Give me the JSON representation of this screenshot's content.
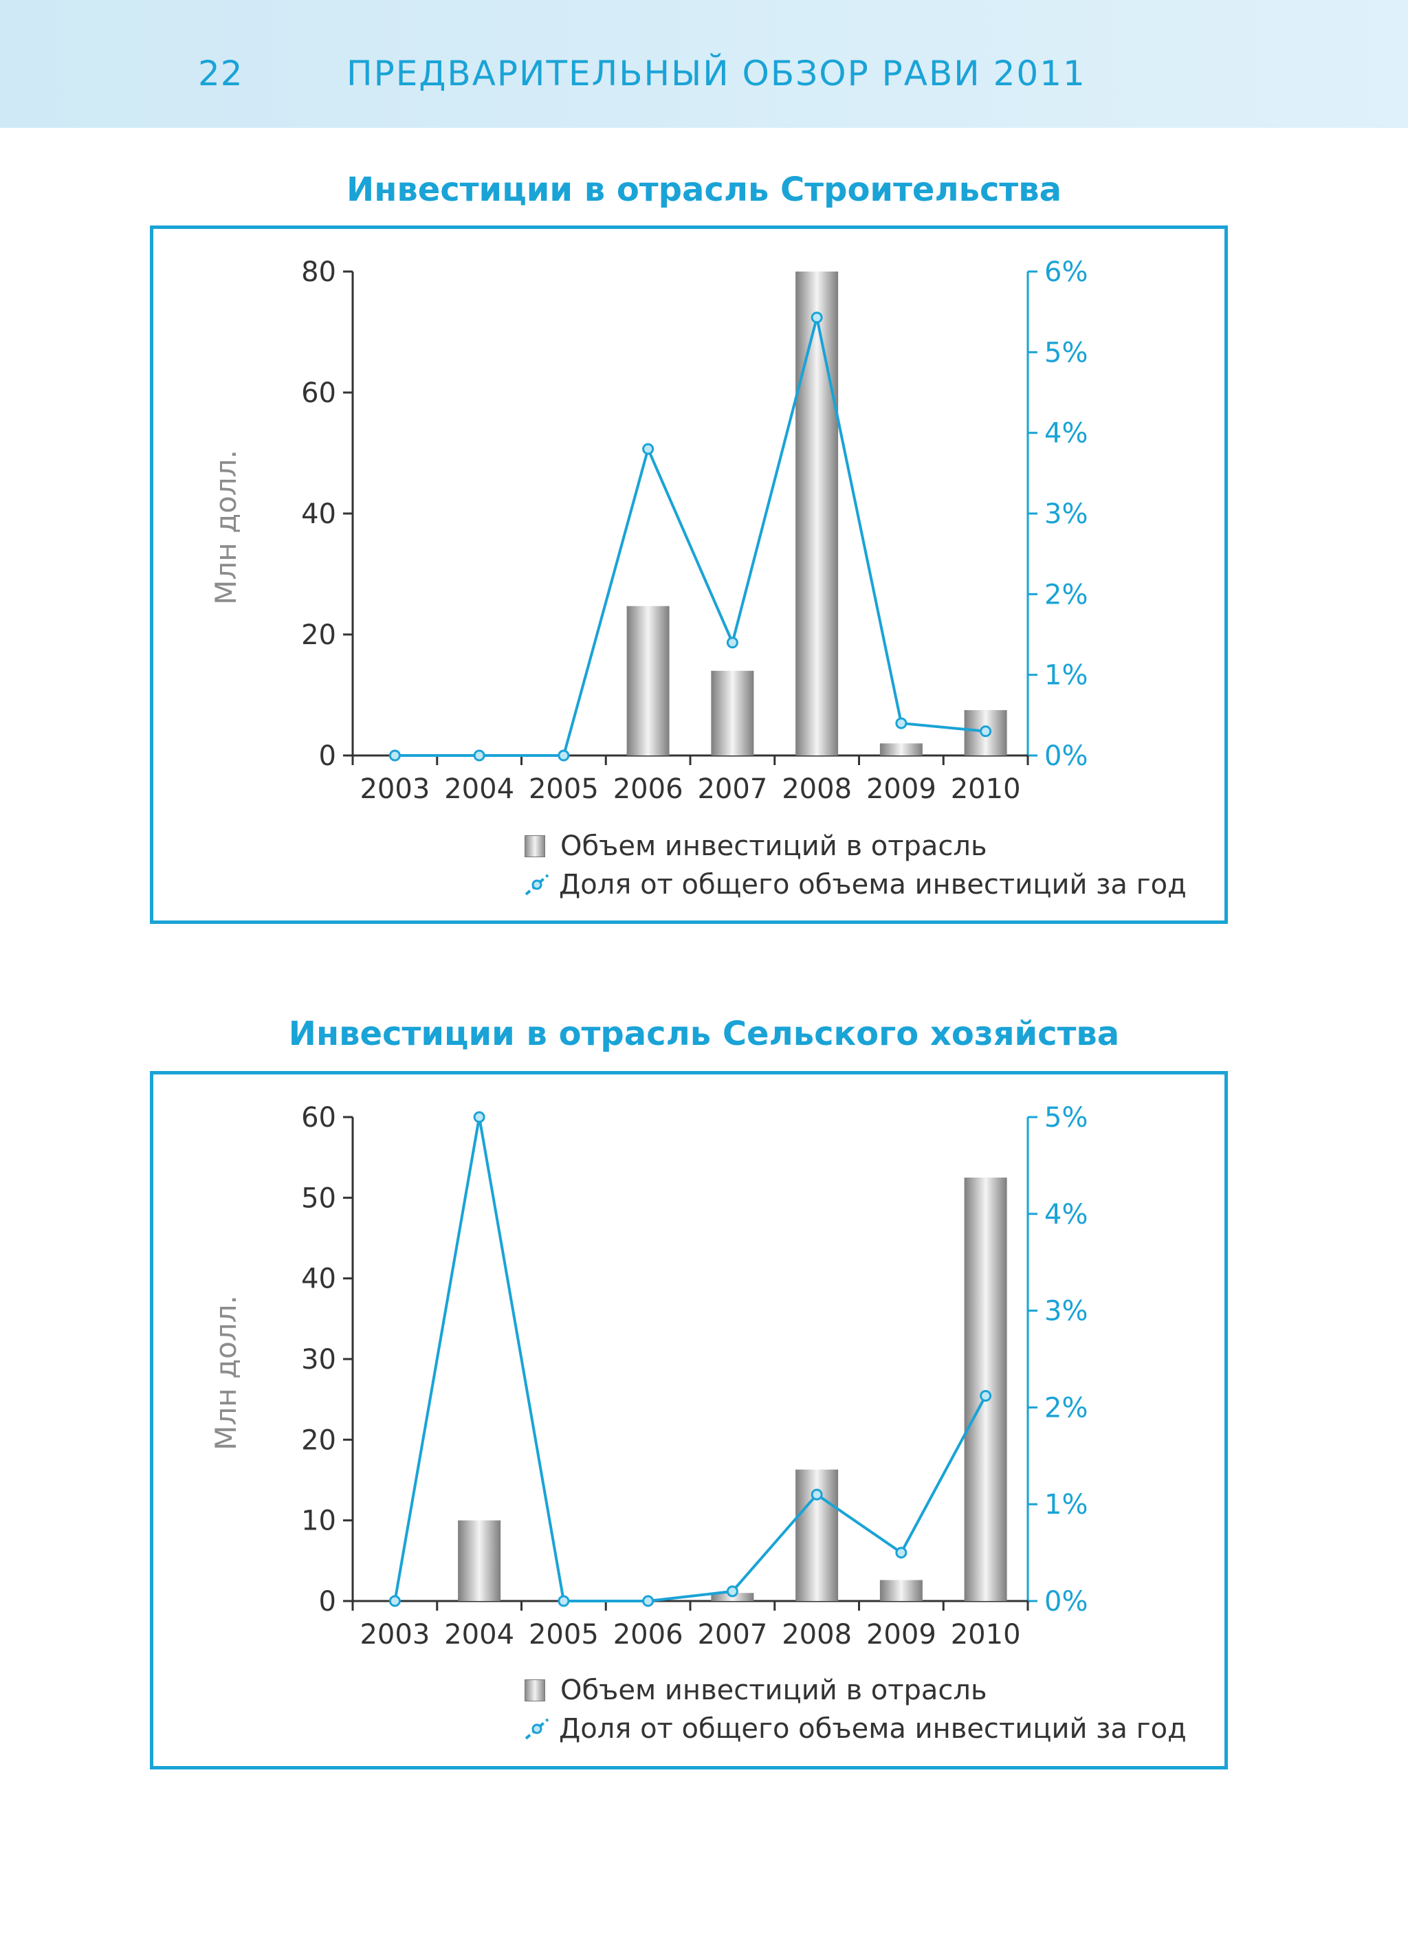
{
  "header": {
    "page_number": "22",
    "title": "ПРЕДВАРИТЕЛЬНЫЙ ОБЗОР РАВИ 2011"
  },
  "colors": {
    "accent": "#1aa3d6",
    "axis": "#333333",
    "ylabel": "#8c8c8c"
  },
  "chart_data": [
    {
      "type": "bar+line",
      "title": "Инвестиции в отрасль Строительства",
      "ylabel": "Млн долл.",
      "categories": [
        "2003",
        "2004",
        "2005",
        "2006",
        "2007",
        "2008",
        "2009",
        "2010"
      ],
      "y_ticks": [
        "0",
        "20",
        "40",
        "60",
        "80"
      ],
      "y2_ticks": [
        "0%",
        "1%",
        "2%",
        "3%",
        "4%",
        "5%",
        "6%"
      ],
      "ylim": [
        0,
        80
      ],
      "y2lim": [
        0,
        6
      ],
      "series": [
        {
          "name": "Объем инвестиций в отрасль",
          "kind": "bar",
          "axis": "left",
          "values": [
            0,
            0,
            0,
            24.7,
            14,
            80,
            2,
            7.5
          ]
        },
        {
          "name": "Доля от общего объема инвестиций за год",
          "kind": "line",
          "axis": "right",
          "values": [
            0,
            0,
            0,
            3.8,
            1.4,
            5.43,
            0.4,
            0.3
          ]
        }
      ],
      "legend": [
        "Объем инвестиций в отрасль",
        "Доля от общего объема инвестиций за год"
      ]
    },
    {
      "type": "bar+line",
      "title": "Инвестиции в отрасль Сельского хозяйства",
      "ylabel": "Млн долл.",
      "categories": [
        "2003",
        "2004",
        "2005",
        "2006",
        "2007",
        "2008",
        "2009",
        "2010"
      ],
      "y_ticks": [
        "0",
        "10",
        "20",
        "30",
        "40",
        "50",
        "60"
      ],
      "y2_ticks": [
        "0%",
        "1%",
        "2%",
        "3%",
        "4%",
        "5%"
      ],
      "ylim": [
        0,
        60
      ],
      "y2lim": [
        0,
        5
      ],
      "series": [
        {
          "name": "Объем инвестиций в отрасль",
          "kind": "bar",
          "axis": "left",
          "values": [
            0,
            10,
            0,
            0,
            1,
            16.3,
            2.6,
            52.5
          ]
        },
        {
          "name": "Доля от общего объема инвестиций за год",
          "kind": "line",
          "axis": "right",
          "values": [
            0,
            5,
            0,
            0,
            0.1,
            1.1,
            0.5,
            2.12
          ]
        }
      ],
      "legend": [
        "Объем инвестиций в отрасль",
        "Доля от общего объема инвестиций за год"
      ]
    }
  ]
}
